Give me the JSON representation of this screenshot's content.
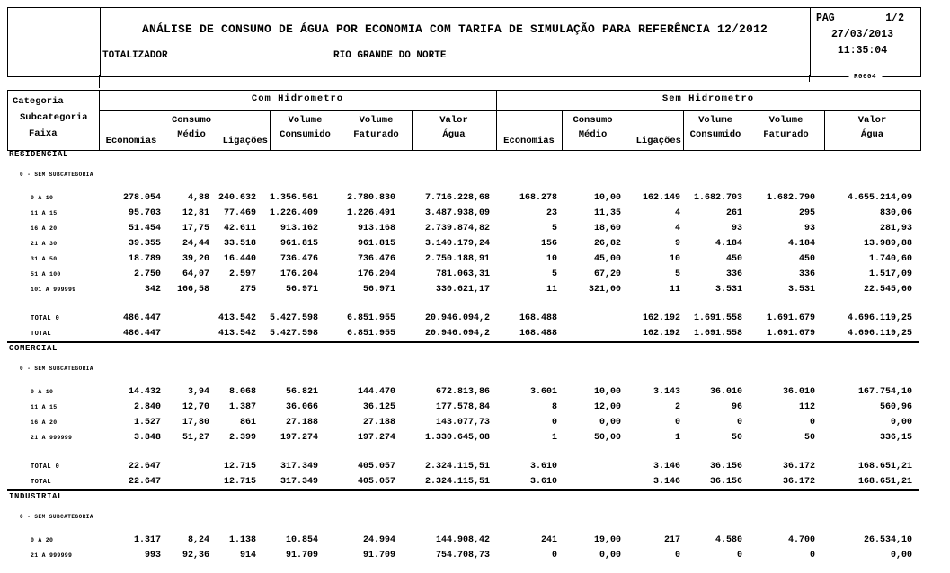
{
  "report": {
    "title": "ANÁLISE DE CONSUMO DE ÁGUA POR ECONOMIA COM TARIFA DE SIMULAÇÃO PARA REFERÊNCIA 12/2012",
    "subtitle_left": "TOTALIZADOR",
    "subtitle_center": "RIO GRANDE DO NORTE",
    "page_label": "PAG",
    "page_value": "1/2",
    "date": "27/03/2013",
    "time": "11:35:04",
    "report_code": "R0604"
  },
  "table": {
    "header": {
      "categoria_lines": [
        "Categoria",
        "Subcategoria",
        "Faixa"
      ],
      "groups": [
        "Com Hidrometro",
        "Sem Hidrometro"
      ],
      "columns": {
        "economias": "Economias",
        "consumo_medio": [
          "Consumo",
          "Médio"
        ],
        "ligacoes": "Ligações",
        "volume_consumido": [
          "Volume",
          "Consumido"
        ],
        "volume_faturado": [
          "Volume",
          "Faturado"
        ],
        "valor_agua": [
          "Valor",
          "Água"
        ]
      }
    },
    "sections": [
      {
        "name": "RESIDENCIAL",
        "subcategoria": "0 - SEM SUBCATEGORIA",
        "rows": [
          {
            "faixa": "0 A 10",
            "com": [
              "278.054",
              "4,88",
              "240.632",
              "1.356.561",
              "2.780.830",
              "7.716.228,68"
            ],
            "sem": [
              "168.278",
              "10,00",
              "162.149",
              "1.682.703",
              "1.682.790",
              "4.655.214,09"
            ]
          },
          {
            "faixa": "11 A 15",
            "com": [
              "95.703",
              "12,81",
              "77.469",
              "1.226.409",
              "1.226.491",
              "3.487.938,09"
            ],
            "sem": [
              "23",
              "11,35",
              "4",
              "261",
              "295",
              "830,06"
            ]
          },
          {
            "faixa": "16 A 20",
            "com": [
              "51.454",
              "17,75",
              "42.611",
              "913.162",
              "913.168",
              "2.739.874,82"
            ],
            "sem": [
              "5",
              "18,60",
              "4",
              "93",
              "93",
              "281,93"
            ]
          },
          {
            "faixa": "21 A 30",
            "com": [
              "39.355",
              "24,44",
              "33.518",
              "961.815",
              "961.815",
              "3.140.179,24"
            ],
            "sem": [
              "156",
              "26,82",
              "9",
              "4.184",
              "4.184",
              "13.989,88"
            ]
          },
          {
            "faixa": "31 A 50",
            "com": [
              "18.789",
              "39,20",
              "16.440",
              "736.476",
              "736.476",
              "2.750.188,91"
            ],
            "sem": [
              "10",
              "45,00",
              "10",
              "450",
              "450",
              "1.740,60"
            ]
          },
          {
            "faixa": "51 A 100",
            "com": [
              "2.750",
              "64,07",
              "2.597",
              "176.204",
              "176.204",
              "781.063,31"
            ],
            "sem": [
              "5",
              "67,20",
              "5",
              "336",
              "336",
              "1.517,09"
            ]
          },
          {
            "faixa": "101 A 999999",
            "com": [
              "342",
              "166,58",
              "275",
              "56.971",
              "56.971",
              "330.621,17"
            ],
            "sem": [
              "11",
              "321,00",
              "11",
              "3.531",
              "3.531",
              "22.545,60"
            ]
          }
        ],
        "totals": [
          {
            "label": "TOTAL 0",
            "com": [
              "486.447",
              "",
              "413.542",
              "5.427.598",
              "6.851.955",
              "20.946.094,2"
            ],
            "sem": [
              "168.488",
              "",
              "162.192",
              "1.691.558",
              "1.691.679",
              "4.696.119,25"
            ]
          },
          {
            "label": "TOTAL",
            "com": [
              "486.447",
              "",
              "413.542",
              "5.427.598",
              "6.851.955",
              "20.946.094,2"
            ],
            "sem": [
              "168.488",
              "",
              "162.192",
              "1.691.558",
              "1.691.679",
              "4.696.119,25"
            ]
          }
        ]
      },
      {
        "name": "COMERCIAL",
        "subcategoria": "0 - SEM SUBCATEGORIA",
        "rows": [
          {
            "faixa": "0 A 10",
            "com": [
              "14.432",
              "3,94",
              "8.068",
              "56.821",
              "144.470",
              "672.813,86"
            ],
            "sem": [
              "3.601",
              "10,00",
              "3.143",
              "36.010",
              "36.010",
              "167.754,10"
            ]
          },
          {
            "faixa": "11 A 15",
            "com": [
              "2.840",
              "12,70",
              "1.387",
              "36.066",
              "36.125",
              "177.578,84"
            ],
            "sem": [
              "8",
              "12,00",
              "2",
              "96",
              "112",
              "560,96"
            ]
          },
          {
            "faixa": "16 A 20",
            "com": [
              "1.527",
              "17,80",
              "861",
              "27.188",
              "27.188",
              "143.077,73"
            ],
            "sem": [
              "0",
              "0,00",
              "0",
              "0",
              "0",
              "0,00"
            ]
          },
          {
            "faixa": "21 A 999999",
            "com": [
              "3.848",
              "51,27",
              "2.399",
              "197.274",
              "197.274",
              "1.330.645,08"
            ],
            "sem": [
              "1",
              "50,00",
              "1",
              "50",
              "50",
              "336,15"
            ]
          }
        ],
        "totals": [
          {
            "label": "TOTAL 0",
            "com": [
              "22.647",
              "",
              "12.715",
              "317.349",
              "405.057",
              "2.324.115,51"
            ],
            "sem": [
              "3.610",
              "",
              "3.146",
              "36.156",
              "36.172",
              "168.651,21"
            ]
          },
          {
            "label": "TOTAL",
            "com": [
              "22.647",
              "",
              "12.715",
              "317.349",
              "405.057",
              "2.324.115,51"
            ],
            "sem": [
              "3.610",
              "",
              "3.146",
              "36.156",
              "36.172",
              "168.651,21"
            ]
          }
        ]
      },
      {
        "name": "INDUSTRIAL",
        "subcategoria": "0 - SEM SUBCATEGORIA",
        "rows": [
          {
            "faixa": "0 A 20",
            "com": [
              "1.317",
              "8,24",
              "1.138",
              "10.854",
              "24.994",
              "144.908,42"
            ],
            "sem": [
              "241",
              "19,00",
              "217",
              "4.580",
              "4.700",
              "26.534,10"
            ]
          },
          {
            "faixa": "21 A 999999",
            "com": [
              "993",
              "92,36",
              "914",
              "91.709",
              "91.709",
              "754.708,73"
            ],
            "sem": [
              "0",
              "0,00",
              "0",
              "0",
              "0",
              "0,00"
            ]
          }
        ],
        "totals": []
      }
    ]
  }
}
